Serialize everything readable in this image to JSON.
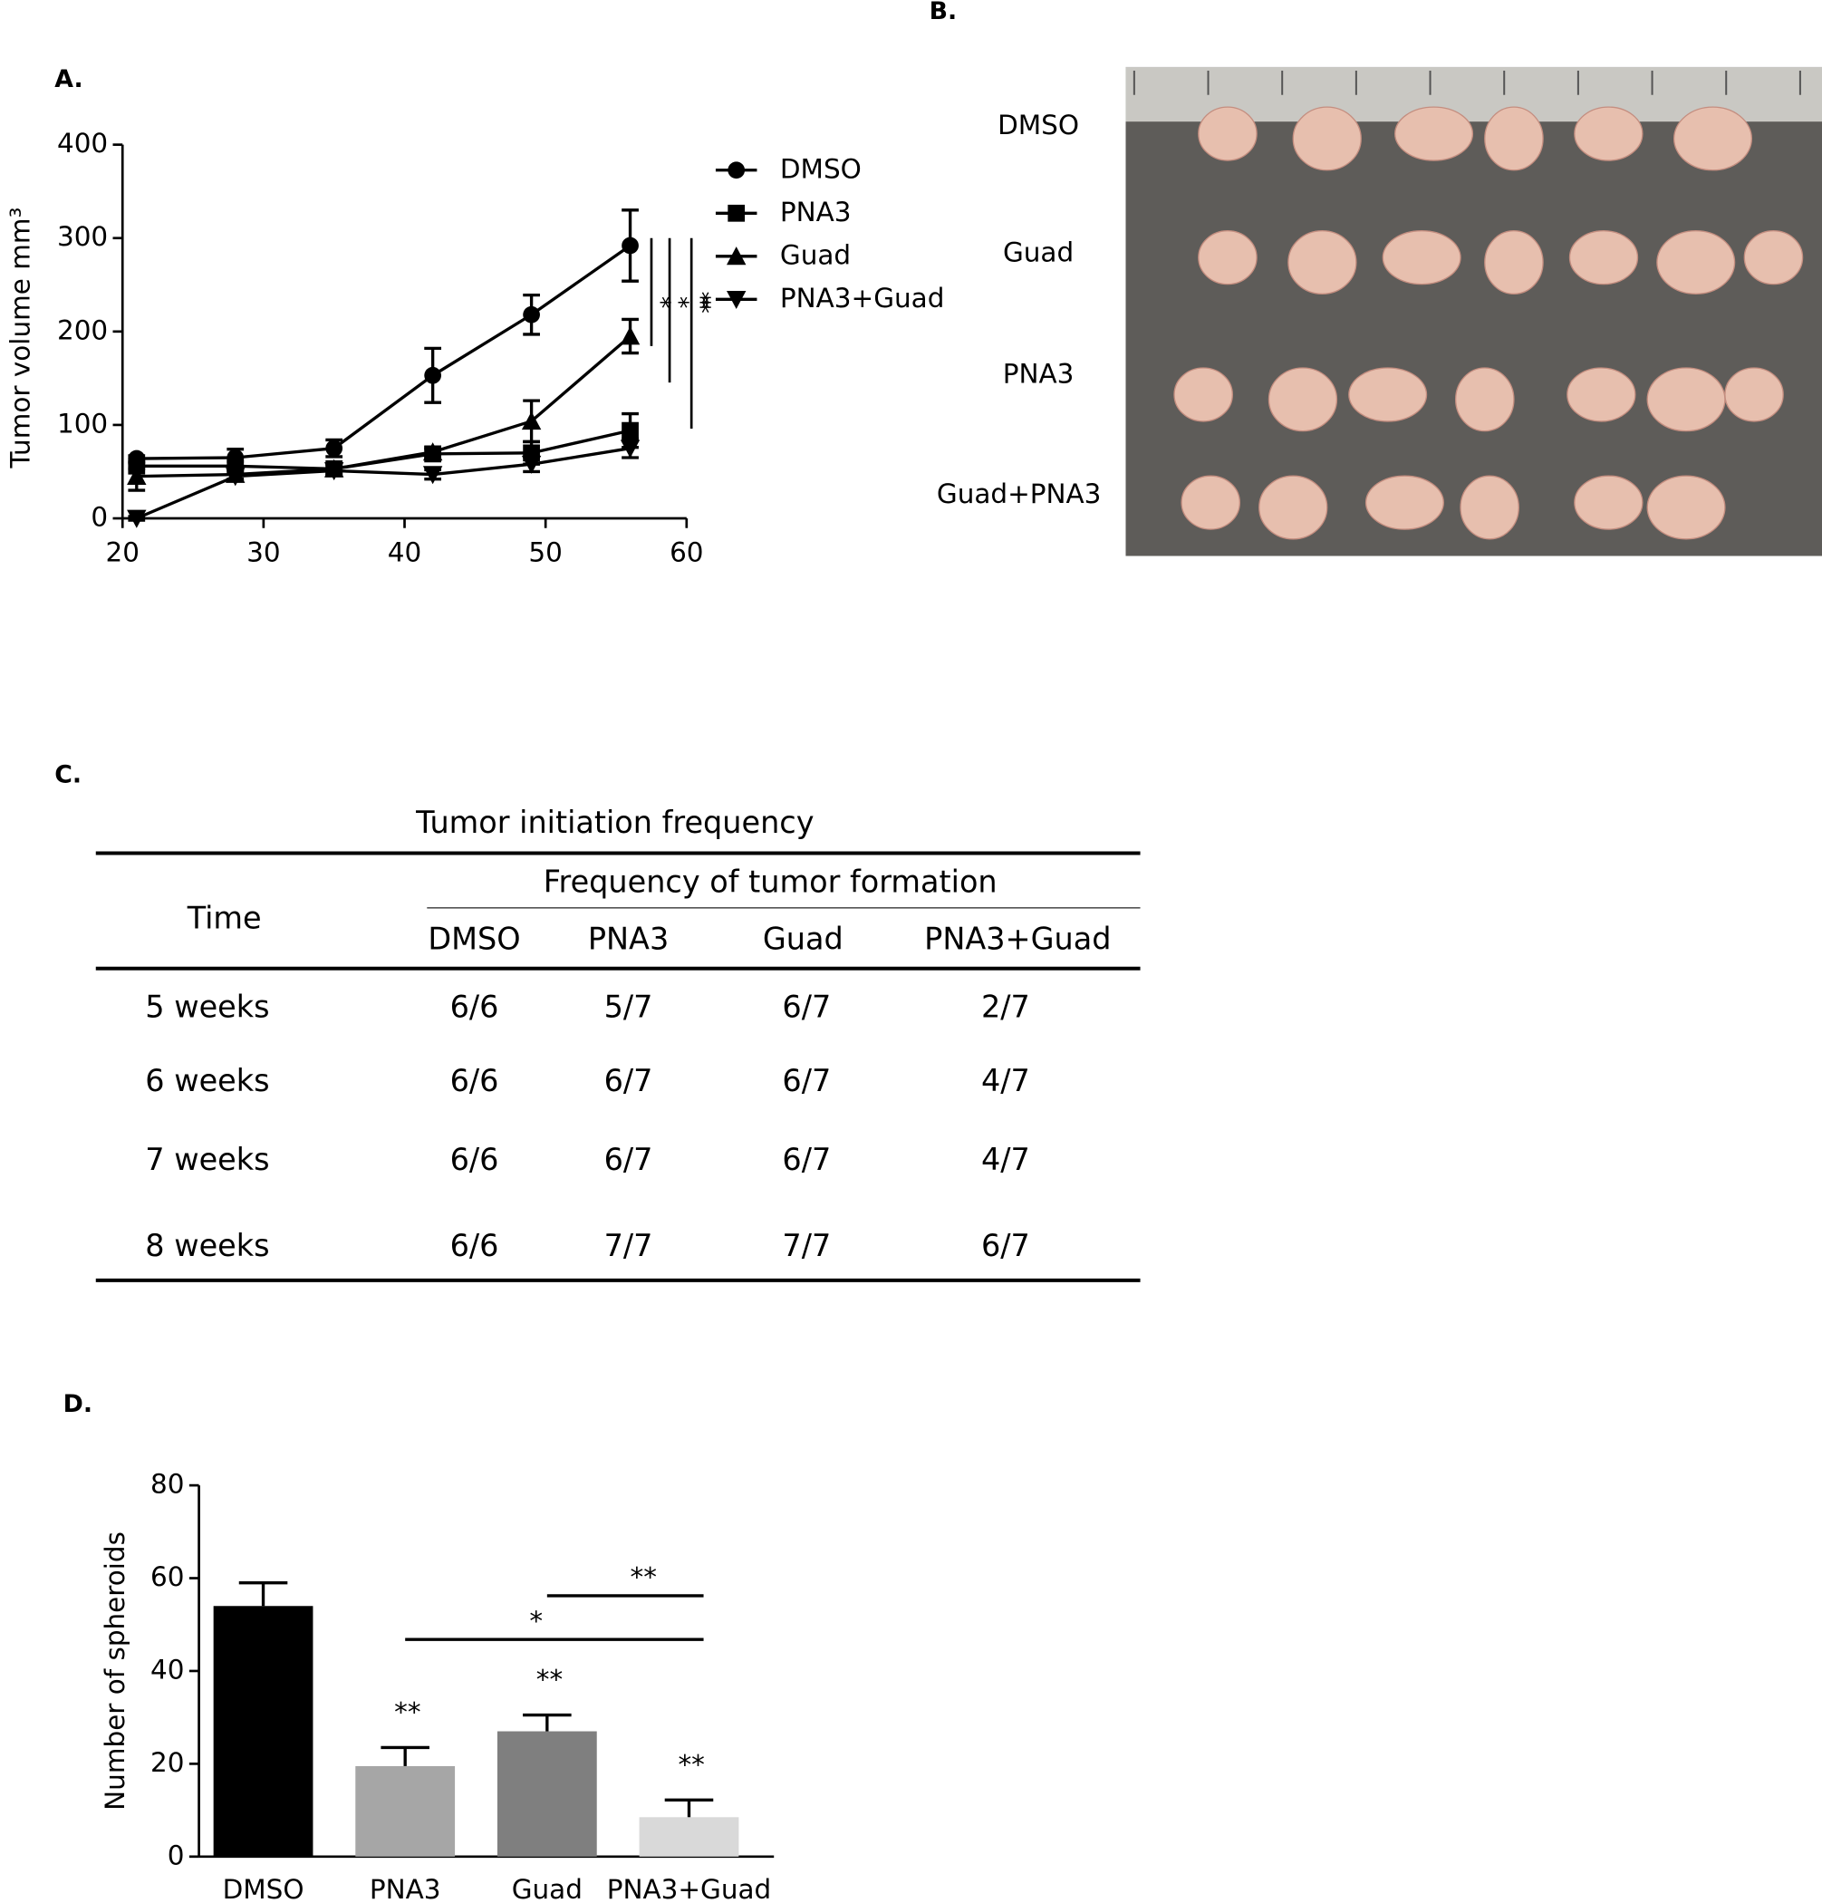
{
  "panel_labels": [
    "A.",
    "B.",
    "C.",
    "D."
  ],
  "chart_data": [
    {
      "type": "line",
      "ylabel": "Tumor volume mm³",
      "x": [
        21,
        28,
        35,
        42,
        49,
        56
      ],
      "xlim": [
        20,
        60
      ],
      "xticks": [
        20,
        30,
        40,
        50,
        60
      ],
      "ylim": [
        0,
        400
      ],
      "yticks": [
        0,
        100,
        200,
        300,
        400
      ],
      "legend": "right",
      "series": [
        {
          "name": "DMSO",
          "color": "#000000",
          "marker": "circle",
          "values": [
            64,
            65,
            75,
            153,
            218,
            292
          ],
          "errors": [
            3,
            9,
            9,
            29,
            21,
            38
          ]
        },
        {
          "name": "PNA3",
          "color": "#000000",
          "marker": "square",
          "values": [
            56,
            56,
            53,
            69,
            70,
            94
          ],
          "errors": [
            3,
            5,
            5,
            5,
            12,
            18
          ]
        },
        {
          "name": "Guad",
          "color": "#000000",
          "marker": "triangle-up",
          "values": [
            45,
            47,
            53,
            71,
            104,
            195
          ],
          "errors": [
            15,
            5,
            5,
            5,
            22,
            18
          ]
        },
        {
          "name": "PNA3+Guad",
          "color": "#000000",
          "marker": "triangle-down",
          "values": [
            0,
            45,
            51,
            47,
            58,
            75
          ],
          "errors": [
            2,
            5,
            5,
            5,
            8,
            10
          ]
        }
      ],
      "significance": [
        "*",
        "*",
        "***"
      ]
    },
    {
      "type": "bar",
      "ylabel": "Number of spheroids",
      "categories": [
        "DMSO",
        "PNA3",
        "Guad",
        "PNA3+Guad"
      ],
      "values": [
        54,
        19.5,
        27,
        8.5
      ],
      "errors": [
        5,
        4,
        3.5,
        3.7
      ],
      "colors": [
        "#000000",
        "#a6a6a6",
        "#7f7f7f",
        "#d9d9d9"
      ],
      "ylim": [
        0,
        80
      ],
      "yticks": [
        0,
        20,
        40,
        60,
        80
      ],
      "annotations": [
        null,
        "**",
        "**",
        "**"
      ],
      "comparisons": [
        {
          "from": 2,
          "to": 3,
          "label": "**"
        },
        {
          "from": 1,
          "to": 3,
          "label": "*"
        }
      ]
    }
  ],
  "photo": {
    "row_labels": [
      "DMSO",
      "Guad",
      "PNA3",
      "Guad+PNA3"
    ]
  },
  "table": {
    "title": "Tumor initiation frequency",
    "group_header": "Frequency of tumor formation",
    "columns": [
      "Time",
      "DMSO",
      "PNA3",
      "Guad",
      "PNA3+Guad"
    ],
    "rows": [
      [
        "5 weeks",
        "6/6",
        "5/7",
        "6/7",
        "2/7"
      ],
      [
        "6 weeks",
        "6/6",
        "6/7",
        "6/7",
        "4/7"
      ],
      [
        "7 weeks",
        "6/6",
        "6/7",
        "6/7",
        "4/7"
      ],
      [
        "8 weeks",
        "6/6",
        "7/7",
        "7/7",
        "6/7"
      ]
    ]
  }
}
